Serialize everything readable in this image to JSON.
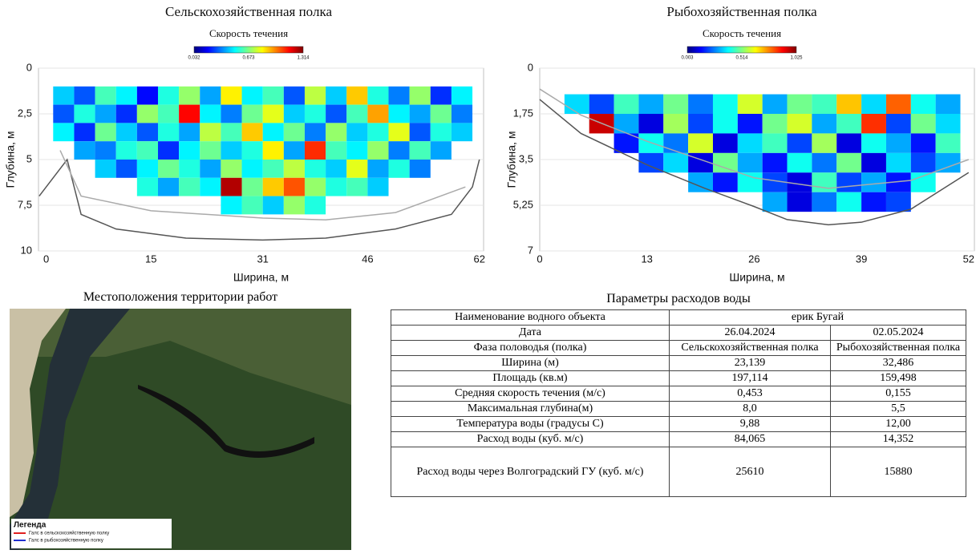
{
  "chart_data": [
    {
      "type": "heatmap",
      "title": "Сельскохозяйственная полка",
      "colorbar_label": "Скорость течения",
      "clim": [
        0.032,
        1.314
      ],
      "colorbar_ticks": [
        0.032,
        0.673,
        1.314
      ],
      "xlabel": "Ширина, м",
      "ylabel": "Глубина, м",
      "xlim": [
        -1.1,
        62.6
      ],
      "xticks": [
        0,
        15,
        31,
        46,
        62
      ],
      "ylim": [
        0,
        10
      ],
      "yticks": [
        0,
        {
          "value": 2.5,
          "label": "2,5"
        },
        5,
        {
          "value": 7.5,
          "label": "7,5"
        },
        10
      ],
      "y_inverted": true,
      "grid": true,
      "xbins": [
        1,
        4,
        7,
        10,
        13,
        16,
        19,
        22,
        25,
        28,
        31,
        34,
        37,
        40,
        43,
        46,
        49,
        52,
        55,
        58,
        61
      ],
      "ybins": [
        1,
        2,
        3,
        4,
        5,
        6,
        7,
        8
      ],
      "z": [
        [
          0.45,
          0.3,
          0.6,
          0.5,
          0.2,
          0.55,
          0.7,
          0.4,
          0.85,
          0.5,
          0.6,
          0.3,
          0.75,
          0.45,
          0.9,
          0.55,
          0.35,
          0.7,
          0.25,
          0.5
        ],
        [
          0.3,
          0.55,
          0.4,
          0.25,
          0.7,
          0.6,
          1.15,
          0.5,
          0.35,
          0.65,
          0.8,
          0.45,
          0.55,
          0.3,
          0.6,
          0.95,
          0.5,
          0.4,
          0.65,
          0.35
        ],
        [
          0.5,
          0.25,
          0.65,
          0.45,
          0.3,
          0.55,
          0.4,
          0.75,
          0.6,
          0.9,
          0.5,
          0.65,
          0.35,
          0.7,
          0.45,
          0.55,
          0.8,
          0.3,
          0.55,
          0.45
        ],
        [
          null,
          0.4,
          0.35,
          0.55,
          0.6,
          0.25,
          0.5,
          0.65,
          0.45,
          0.55,
          0.85,
          0.4,
          1.1,
          0.6,
          0.5,
          0.7,
          0.35,
          0.6,
          0.4,
          null
        ],
        [
          null,
          null,
          0.45,
          0.3,
          0.5,
          0.65,
          0.55,
          0.4,
          0.7,
          0.5,
          0.6,
          0.75,
          0.55,
          0.45,
          0.8,
          0.4,
          0.55,
          0.35,
          null,
          null
        ],
        [
          null,
          null,
          null,
          null,
          0.55,
          0.4,
          0.6,
          0.5,
          1.25,
          0.65,
          0.9,
          1.05,
          0.7,
          0.55,
          0.6,
          0.45,
          null,
          null,
          null,
          null
        ],
        [
          null,
          null,
          null,
          null,
          null,
          null,
          null,
          null,
          0.5,
          0.6,
          0.45,
          0.7,
          0.55,
          null,
          null,
          null,
          null,
          null,
          null,
          null
        ]
      ],
      "lines": [
        {
          "color": "#555555",
          "x": [
            -1,
            0,
            3,
            5,
            10,
            20,
            31,
            40,
            50,
            58,
            61,
            62
          ],
          "y": [
            7,
            6.5,
            5,
            8,
            8.8,
            9.3,
            9.4,
            9.3,
            8.8,
            8,
            6.5,
            5
          ]
        },
        {
          "color": "#aaaaaa",
          "x": [
            2,
            5,
            15,
            31,
            40,
            50,
            60
          ],
          "y": [
            4.5,
            7,
            7.8,
            8.2,
            8.3,
            7.9,
            6.5
          ]
        }
      ]
    },
    {
      "type": "heatmap",
      "title": "Рыбохозяйственная полка",
      "colorbar_label": "Скорость течения",
      "clim": [
        0.003,
        1.025
      ],
      "colorbar_ticks": [
        0.003,
        0.514,
        1.025
      ],
      "xlabel": "Ширина, м",
      "ylabel": "Глубина, м",
      "xlim": [
        0,
        52.7
      ],
      "xticks": [
        0,
        13,
        26,
        39,
        52
      ],
      "ylim": [
        0,
        7
      ],
      "yticks": [
        0,
        {
          "value": 1.75,
          "label": "1,75"
        },
        {
          "value": 3.5,
          "label": "3,5"
        },
        {
          "value": 5.25,
          "label": "5,25"
        },
        7
      ],
      "y_inverted": true,
      "grid": true,
      "xbins": [
        3,
        6,
        9,
        12,
        15,
        18,
        21,
        24,
        27,
        30,
        33,
        36,
        39,
        42,
        45,
        48,
        51
      ],
      "ybins": [
        1,
        1.75,
        2.5,
        3.25,
        4,
        4.75,
        5.5
      ],
      "z": [
        [
          0.35,
          0.2,
          0.45,
          0.3,
          0.5,
          0.25,
          0.4,
          0.6,
          0.3,
          0.5,
          0.45,
          0.7,
          0.35,
          0.8,
          0.4,
          0.3
        ],
        [
          null,
          0.95,
          0.3,
          0.1,
          0.55,
          0.2,
          0.4,
          0.15,
          0.5,
          0.6,
          0.3,
          0.45,
          0.85,
          0.2,
          0.5,
          0.35
        ],
        [
          null,
          null,
          0.15,
          0.4,
          0.25,
          0.6,
          0.1,
          0.35,
          0.45,
          0.2,
          0.55,
          0.1,
          0.4,
          0.3,
          0.15,
          0.45
        ],
        [
          null,
          null,
          null,
          0.2,
          0.35,
          0.1,
          0.5,
          0.3,
          0.15,
          0.4,
          0.25,
          0.5,
          0.1,
          0.35,
          0.2,
          0.3
        ],
        [
          null,
          null,
          null,
          null,
          null,
          0.3,
          0.15,
          0.4,
          0.2,
          0.1,
          0.45,
          0.2,
          0.3,
          0.15,
          0.4,
          null
        ],
        [
          null,
          null,
          null,
          null,
          null,
          null,
          null,
          null,
          0.3,
          0.1,
          0.25,
          0.4,
          0.15,
          0.2,
          null,
          null
        ]
      ],
      "lines": [
        {
          "color": "#555555",
          "x": [
            0,
            5,
            13,
            20,
            26,
            30,
            35,
            39,
            45,
            52
          ],
          "y": [
            1.2,
            2.5,
            3.7,
            4.6,
            5.3,
            5.8,
            6,
            5.9,
            5.4,
            4
          ]
        },
        {
          "color": "#aaaaaa",
          "x": [
            0,
            5,
            13,
            26,
            35,
            45,
            52
          ],
          "y": [
            0.8,
            1.8,
            2.8,
            4.2,
            4.6,
            4.3,
            3.5
          ]
        }
      ]
    }
  ],
  "map": {
    "title": "Местоположения территории работ",
    "legend_title": "Легенда",
    "legend": [
      {
        "label": "Галс в сельскохозяйственную полку",
        "color": "#e02020"
      },
      {
        "label": "Галс в рыбохозяйственную полку",
        "color": "#2030d0"
      }
    ]
  },
  "table": {
    "title": "Параметры расходов воды",
    "rows": [
      [
        "Наименование водного объекта",
        "ерик Бугай"
      ],
      [
        "Дата",
        "26.04.2024",
        "02.05.2024"
      ],
      [
        "Фаза половодья (полка)",
        "Сельскохозяйственная полка",
        "Рыбохозяйственная полка"
      ],
      [
        "Ширина (м)",
        "23,139",
        "32,486"
      ],
      [
        "Площадь (кв.м)",
        "197,114",
        "159,498"
      ],
      [
        "Средняя скорость течения (м/с)",
        "0,453",
        "0,155"
      ],
      [
        "Максимальная глубина(м)",
        "8,0",
        "5,5"
      ],
      [
        "Температура воды (градусы С)",
        "9,88",
        "12,00"
      ],
      [
        "Расход воды (куб. м/с)",
        "84,065",
        "14,352"
      ],
      [
        "Расход воды через Волгоградский ГУ (куб. м/с)",
        "25610",
        "15880"
      ]
    ]
  }
}
